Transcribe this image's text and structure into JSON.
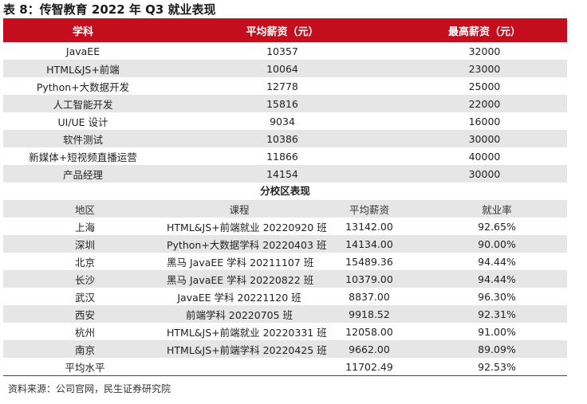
{
  "title": "表 8：传智教育 2022 年 Q3 就业表现",
  "table1": {
    "headers": [
      "学科",
      "平均薪资（元）",
      "最高薪资（元）"
    ],
    "rows": [
      [
        "JavaEE",
        "10357",
        "32000"
      ],
      [
        "HTML&JS+前端",
        "10064",
        "23000"
      ],
      [
        "Python+大数据开发",
        "12778",
        "25000"
      ],
      [
        "人工智能开发",
        "15816",
        "22000"
      ],
      [
        "UI/UE 设计",
        "9034",
        "16000"
      ],
      [
        "软件测试",
        "10386",
        "30000"
      ],
      [
        "新媒体+短视频直播运营",
        "11866",
        "40000"
      ],
      [
        "产品经理",
        "14154",
        "30000"
      ]
    ]
  },
  "table2": {
    "section_title": "分校区表现",
    "headers": [
      "地区",
      "课程",
      "平均薪资",
      "就业率"
    ],
    "rows": [
      [
        "上海",
        "HTML&JS+前端就业 20220920 班",
        "13142.00",
        "92.65%"
      ],
      [
        "深圳",
        "Python+大数据学科 20220403 班",
        "14134.00",
        "90.00%"
      ],
      [
        "北京",
        "黑马 JavaEE 学科 20211107 班",
        "15489.36",
        "94.44%"
      ],
      [
        "长沙",
        "黑马 JavaEE 学科 20220822 班",
        "10379.00",
        "94.44%"
      ],
      [
        "武汉",
        "JavaEE 学科 20221120 班",
        "8837.00",
        "96.30%"
      ],
      [
        "西安",
        "前端学科 20220705 班",
        "9918.52",
        "92.31%"
      ],
      [
        "杭州",
        "HTML&JS+前端就业 20220331 班",
        "12058.00",
        "91.00%"
      ],
      [
        "南京",
        "HTML&JS+前端学科 20220425 班",
        "9662.00",
        "89.09%"
      ],
      [
        "平均水平",
        "",
        "11702.49",
        "92.53%"
      ]
    ]
  },
  "source": "资料来源：公司官网，民生证券研究院",
  "colors": {
    "header_bg": "#c40d1d",
    "stripe": "#e6e6e6"
  }
}
